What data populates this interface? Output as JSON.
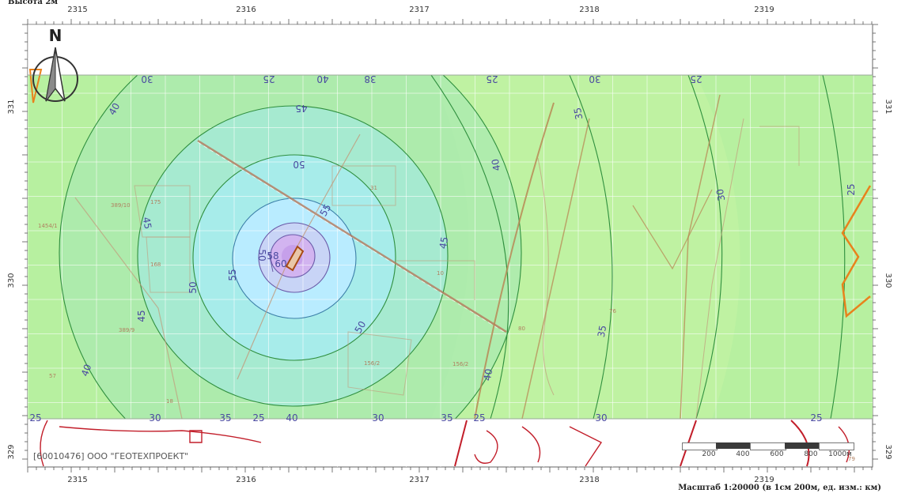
{
  "header": {
    "caption": "Высота 2м"
  },
  "axes": {
    "top_x": [
      "2315",
      "2316",
      "2317",
      "2318",
      "2319"
    ],
    "bottom_x": [
      "2315",
      "2316",
      "2317",
      "2318",
      "2319"
    ],
    "left_y": [
      "331",
      "330",
      "329"
    ],
    "right_y": [
      "331",
      "330",
      "329"
    ]
  },
  "compass": {
    "label": "N"
  },
  "contour_labels": {
    "top": [
      "30",
      "25",
      "40",
      "38",
      "25",
      "30",
      "25"
    ],
    "bottom": [
      "25",
      "30",
      "35",
      "25",
      "40",
      "30",
      "35",
      "25",
      "30",
      "25"
    ],
    "inner": [
      "40",
      "45",
      "45",
      "50",
      "55",
      "50",
      "55",
      "50",
      "58",
      "45",
      "50",
      "45",
      "40",
      "35",
      "40",
      "35",
      "30",
      "25",
      "40",
      "60"
    ]
  },
  "parcel_labels": [
    "389/10",
    "1454/1",
    "175",
    "168",
    "389/9",
    "57",
    "18",
    "156/2",
    "156/2",
    "31",
    "10",
    "76",
    "80",
    "79"
  ],
  "organization": "[60010476] ООО \"ГЕОТЕХПРОЕКТ\"",
  "scalebar": {
    "labels": [
      "200",
      "400",
      "600",
      "800",
      "1000м"
    ]
  },
  "scale_text": "Масштаб 1:20000 (в 1см 200м, ед. изм.: км)",
  "colors": {
    "zone_25": "#b7f0a0",
    "zone_35": "#a8ecb6",
    "zone_45": "#a6ead0",
    "zone_50": "#a7ecea",
    "zone_55": "#b9ecff",
    "zone_58": "#c8d4f6",
    "zone_60": "#d2b4f0",
    "contour": "#2f8f3e",
    "site": "#a84a14",
    "boundary": "#e8821c",
    "road": "#b5785a",
    "street_red": "#c21e2a"
  }
}
